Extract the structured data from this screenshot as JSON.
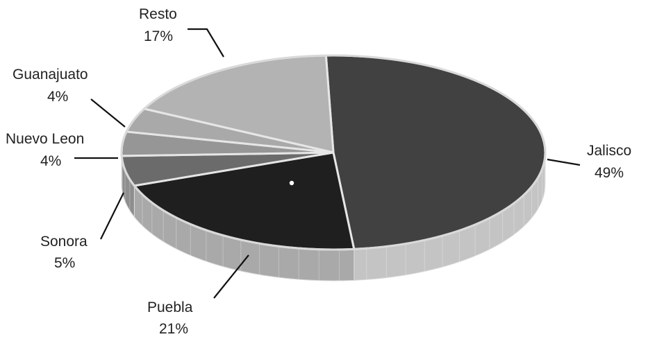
{
  "chart_data": {
    "type": "pie",
    "title": "",
    "style": "3d-tilted",
    "categories": [
      "Jalisco",
      "Puebla",
      "Sonora",
      "Nuevo Leon",
      "Guanajuato",
      "Resto"
    ],
    "values": [
      49,
      21,
      5,
      4,
      4,
      17
    ],
    "value_labels": [
      "49%",
      "21%",
      "5%",
      "4%",
      "4%",
      "17%"
    ],
    "colors": [
      "#414141",
      "#1f1f1f",
      "#6b6b6b",
      "#969696",
      "#a9a9a9",
      "#b3b3b3"
    ],
    "rim_colors": [
      "#c4c4c4",
      "#a9a9a9",
      "#8e8e8e",
      "#9a9a9a",
      "#a6a6a6",
      "#b0b0b0"
    ],
    "legend": "none"
  }
}
